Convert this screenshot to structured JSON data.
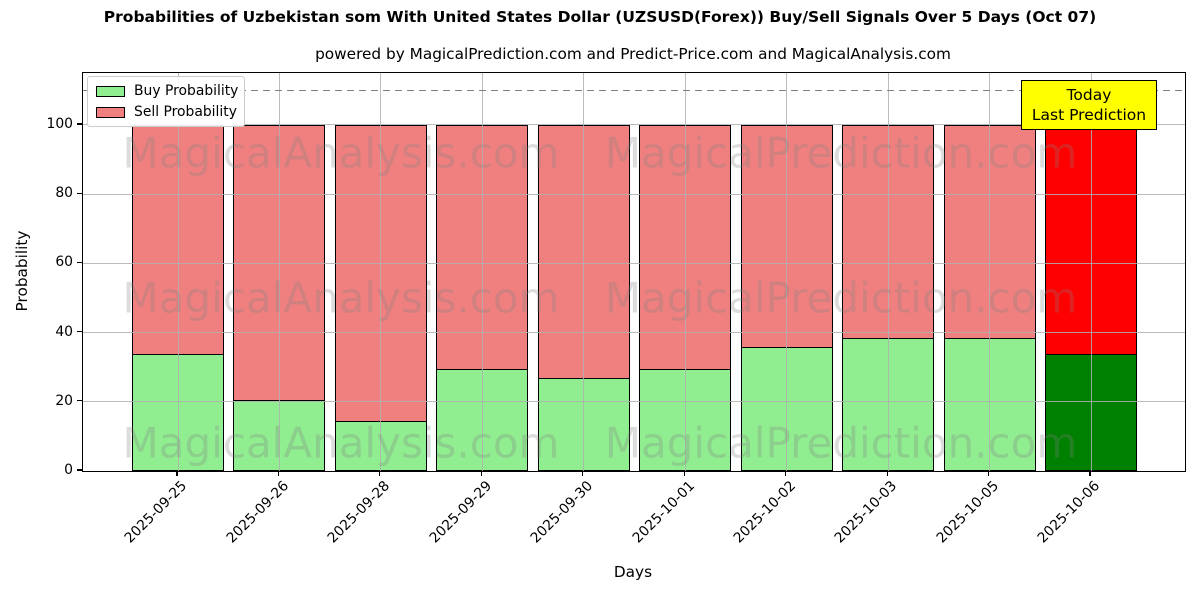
{
  "title": "Probabilities of Uzbekistan som With United States Dollar (UZSUSD(Forex)) Buy/Sell Signals Over 5 Days (Oct 07)",
  "subtitle": "powered by MagicalPrediction.com and Predict-Price.com and MagicalAnalysis.com",
  "annotation": {
    "line1": "Today",
    "line2": "Last Prediction",
    "bg_color": "#ffff00",
    "border_color": "#000000"
  },
  "watermarks": {
    "left": "MagicalAnalysis.com",
    "right": "MagicalPrediction.com"
  },
  "legend": [
    {
      "label": "Buy Probability",
      "color": "#90EE90"
    },
    {
      "label": "Sell Probability",
      "color": "#F08080"
    }
  ],
  "chart_data": {
    "type": "bar",
    "stacked": true,
    "title": "Probabilities of Uzbekistan som With United States Dollar (UZSUSD(Forex)) Buy/Sell Signals Over 5 Days (Oct 07)",
    "xlabel": "Days",
    "ylabel": "Probability",
    "categories": [
      "2025-09-25",
      "2025-09-26",
      "2025-09-28",
      "2025-09-29",
      "2025-09-30",
      "2025-10-01",
      "2025-10-02",
      "2025-10-03",
      "2025-10-05",
      "2025-10-06"
    ],
    "series": [
      {
        "name": "Buy Probability",
        "color": "#90EE90",
        "today_color": "#008000",
        "values": [
          34,
          20.5,
          14.5,
          29.5,
          27,
          29.5,
          36,
          38.5,
          38.5,
          34
        ]
      },
      {
        "name": "Sell Probability",
        "color": "#F08080",
        "today_color": "#FF0000",
        "values": [
          66,
          79.5,
          85.5,
          70.5,
          73,
          70.5,
          64,
          61.5,
          61.5,
          66
        ]
      }
    ],
    "bar_total": 100,
    "ylim": [
      0,
      115
    ],
    "yticks": [
      0,
      20,
      40,
      60,
      80,
      100
    ],
    "dashed_line_y": 110,
    "grid": true,
    "grid_color": "#b0b0b0",
    "dashed_line_color": "#7f7f7f",
    "legend_position": "upper left"
  }
}
